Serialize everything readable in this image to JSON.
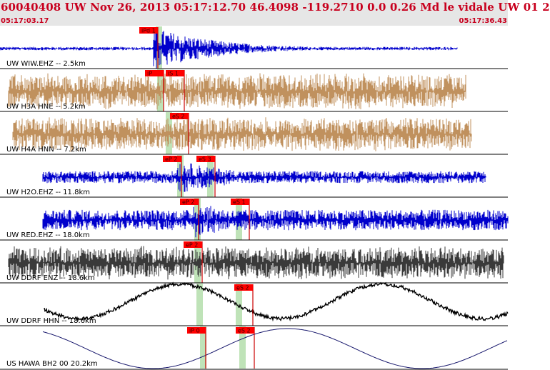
{
  "header": {
    "title": "60040408 UW Nov 26, 2013 05:17:12.70   46.4098 -119.2710  0.0 0.26 Md le vidale UW 01   2",
    "time_start": "05:17:03.17",
    "time_end": "05:17:36.43"
  },
  "colors": {
    "header_bg": "#e6e6e6",
    "header_text": "#c8001e",
    "pick_box": "#ff0000",
    "pick_line": "#cc0000",
    "pick_window": "#bfe3b8",
    "trace_blue": "#0000cc",
    "trace_tan": "#c0915e",
    "trace_gray": "#3a3a3a",
    "trace_black": "#000000",
    "trace_navy": "#1a1a6e"
  },
  "traces": [
    {
      "label": "UW WIW.EHZ -- 2.5km",
      "color": "blue",
      "style": "event",
      "picks": [
        {
          "label": "iPd 1"
        }
      ]
    },
    {
      "label": "UW H3A HNE -- 5.2km",
      "color": "tan",
      "style": "noise",
      "picks": [
        {
          "label": "iP"
        },
        {
          "label": "iS 1"
        }
      ]
    },
    {
      "label": "UW H4A HNN -- 7.2km",
      "color": "tan",
      "style": "noise",
      "picks": [
        {
          "label": "eS 2"
        }
      ]
    },
    {
      "label": "UW H2O.EHZ -- 11.8km",
      "color": "blue",
      "style": "event",
      "picks": [
        {
          "label": "eP 2"
        },
        {
          "label": "eS 3"
        }
      ]
    },
    {
      "label": "UW RED.EHZ -- 18.0km",
      "color": "blue",
      "style": "event",
      "picks": [
        {
          "label": "eP 2"
        },
        {
          "label": "eS 1"
        }
      ]
    },
    {
      "label": "UW DDRF ENZ -- 18.6km",
      "color": "gray",
      "style": "noise",
      "picks": [
        {
          "label": "eP 2"
        }
      ]
    },
    {
      "label": "UW DDRF HHN -- 18.6km",
      "color": "black",
      "style": "longperiod",
      "picks": [
        {
          "label": "eS 2"
        }
      ]
    },
    {
      "label": "US HAWA BH2 00 20.2km",
      "color": "navy",
      "style": "sine",
      "picks": [
        {
          "label": "iP 0"
        },
        {
          "label": "eS 2"
        }
      ]
    }
  ]
}
